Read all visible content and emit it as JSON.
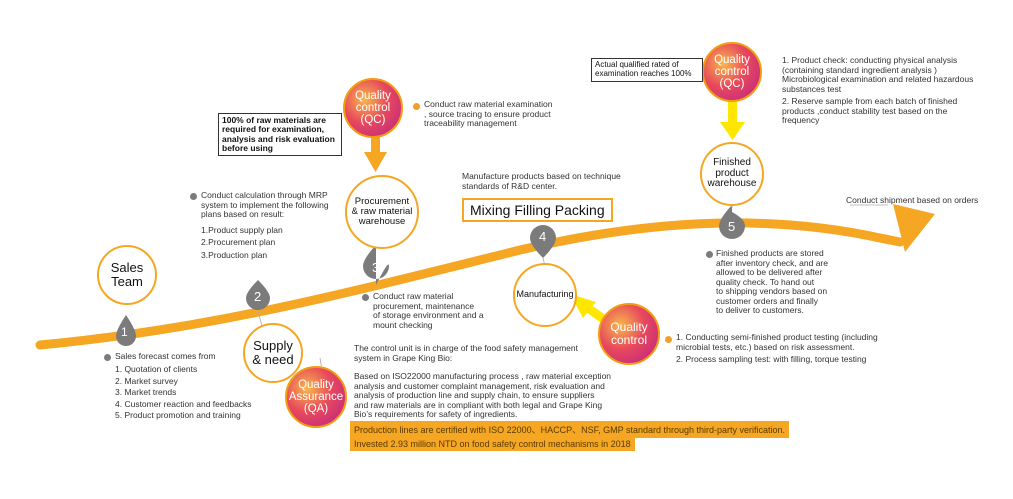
{
  "colors": {
    "accent": "#f5a623",
    "gray": "#7b7b7b",
    "yellow": "#ffe600"
  },
  "steps": {
    "s1": "1",
    "s2": "2",
    "s3": "3",
    "s4": "4",
    "s5": "5"
  },
  "nodes": {
    "sales_team": "Sales\nTeam",
    "supply_need": "Supply\n& need",
    "procurement": "Procurement\n& raw material\nwarehouse",
    "manufacturing": "Manufacturing",
    "finished": "Finished\nproduct\nwarehouse"
  },
  "qc_badges": {
    "qc_top": "Quality\ncontrol\n(QC)",
    "qc_right": "Quality\ncontrol\n(QC)",
    "qc_mid": "Quality\ncontrol",
    "qa": "Quality\nAssurance\n(QA)"
  },
  "mixing_label": "Mixing Filling Packing",
  "manufacture_note": "Manufacture products based on technique\nstandards of R&D center.",
  "shipment_note": "Conduct shipment based on orders",
  "raw_box": "100% of raw materials are\nrequired for examination,\nanalysis and risk evaluation\nbefore using",
  "actual_box": "Actual qualified rated of\nexamination reaches 100%",
  "qc_top_note": "Conduct raw material examination\n, source tracing to ensure product\ntraceability management",
  "mrp_note": "Conduct calculation through MRP\nsystem to implement the following\nplans based on result:",
  "mrp_items": [
    "1.Product supply plan",
    "2.Procurement plan",
    "3.Production plan"
  ],
  "procure_note": "Conduct raw material\nprocurement, maintenance\nof storage environment and a\nmount checking",
  "sales_note": "Sales forecast comes from",
  "sales_items": [
    "1. Quotation of clients",
    "2. Market survey",
    "3. Market trends",
    "4. Customer reaction and feedbacks",
    "5. Product promotion and training"
  ],
  "finished_note": "Finished products are stored\nafter inventory check, and are\nallowed to be delivered after\nquality check. To hand out\nto shipping vendors based on\ncustomer orders and finally\nto deliver to customers.",
  "qc_right_items": [
    "1.  Product check: conducting physical analysis\n      (containing standard ingredient analysis )\n      Microbiological examination and related hazardous\n      substances test",
    "2.  Reserve sample from each batch of finished\n      products ,conduct stability test  based on the\n      frequency"
  ],
  "qc_mid_items": [
    "1.  Conducting semi-finished product testing (including\n      microbial tests, etc.) based on risk assessment.",
    "2.  Process sampling test: with filling, torque testing"
  ],
  "control_unit": "The control unit is in charge of the food safety management\nsystem  in Grape King Bio:",
  "qa_text": "Based on ISO22000 manufacturing process , raw material exception\nanalysis and customer complaint management, risk evaluation and\nanalysis of production line and supply chain, to ensure suppliers\nand raw materials are in compliant with both legal and Grape King\nBio’s requirements for safety of ingredients.",
  "highlight1": "Production lines are certified with ISO 22000、HACCP、NSF, GMP standard through third-party verification.",
  "highlight2": "Invested 2.93 million NTD on food safety control mechanisms in 2018"
}
